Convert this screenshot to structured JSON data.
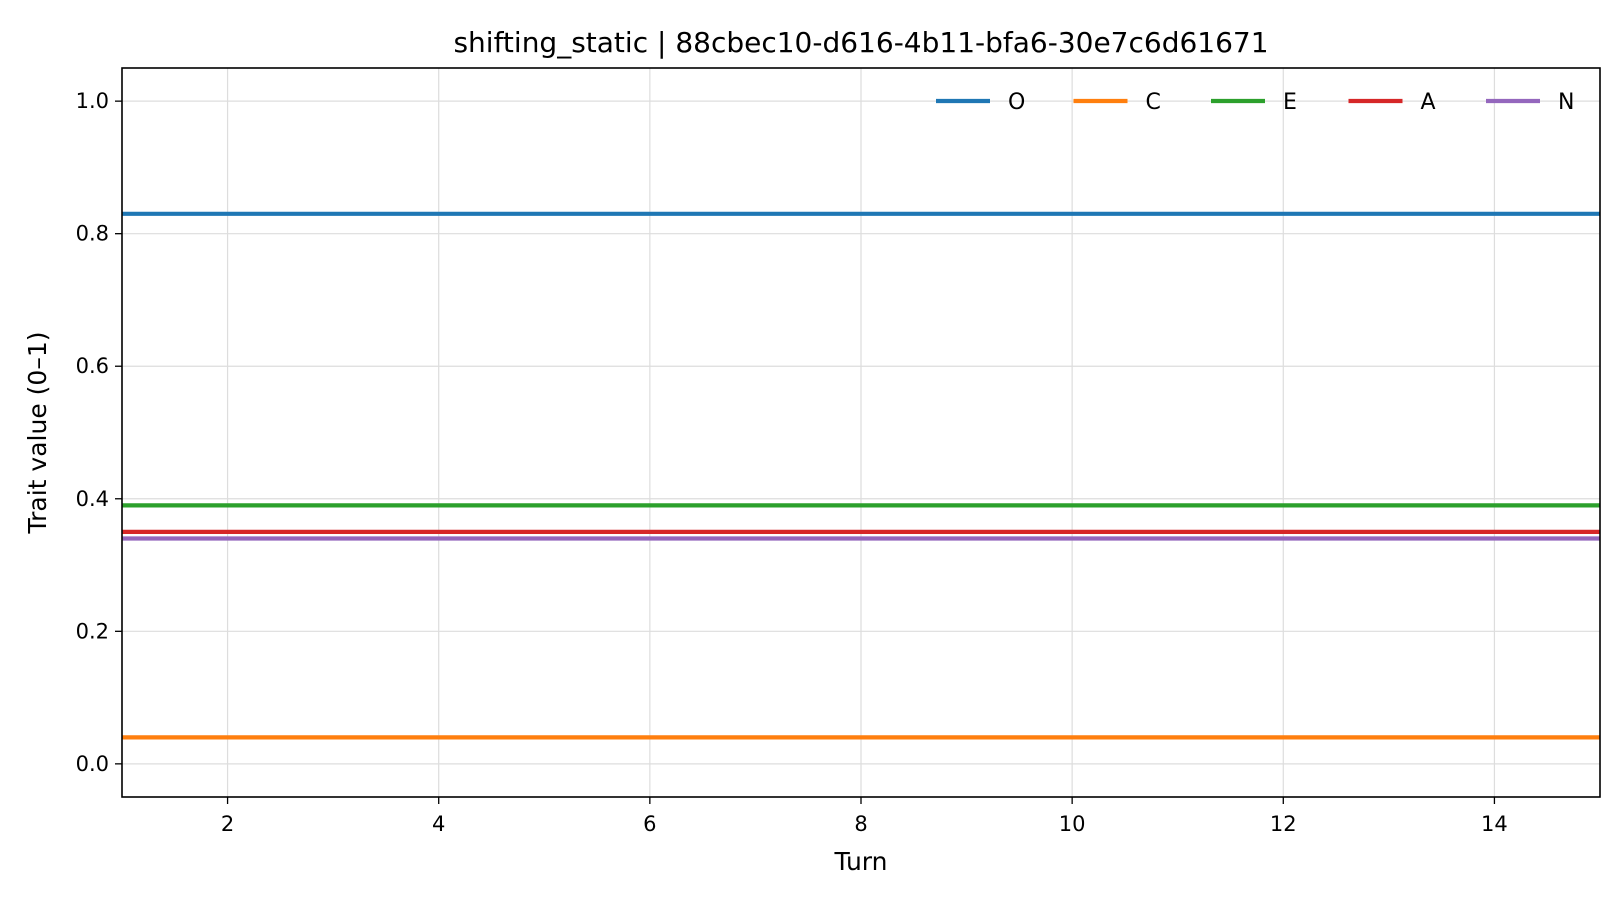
{
  "chart_data": {
    "type": "line",
    "title": "shifting_static | 88cbec10-d616-4b11-bfa6-30e7c6d61671",
    "xlabel": "Turn",
    "ylabel": "Trait value (0–1)",
    "xlim": [
      1,
      15
    ],
    "ylim": [
      -0.05,
      1.05
    ],
    "xticks": [
      2,
      4,
      6,
      8,
      10,
      12,
      14
    ],
    "yticks": [
      0.0,
      0.2,
      0.4,
      0.6,
      0.8,
      1.0
    ],
    "ytick_labels": [
      "0.0",
      "0.2",
      "0.4",
      "0.6",
      "0.8",
      "1.0"
    ],
    "grid": true,
    "legend_position": "top-right",
    "x": [
      1,
      2,
      3,
      4,
      5,
      6,
      7,
      8,
      9,
      10,
      11,
      12,
      13,
      14,
      15
    ],
    "series": [
      {
        "name": "O",
        "color": "#1f77b4",
        "values": [
          0.83,
          0.83,
          0.83,
          0.83,
          0.83,
          0.83,
          0.83,
          0.83,
          0.83,
          0.83,
          0.83,
          0.83,
          0.83,
          0.83,
          0.83
        ]
      },
      {
        "name": "C",
        "color": "#ff7f0e",
        "values": [
          0.04,
          0.04,
          0.04,
          0.04,
          0.04,
          0.04,
          0.04,
          0.04,
          0.04,
          0.04,
          0.04,
          0.04,
          0.04,
          0.04,
          0.04
        ]
      },
      {
        "name": "E",
        "color": "#2ca02c",
        "values": [
          0.39,
          0.39,
          0.39,
          0.39,
          0.39,
          0.39,
          0.39,
          0.39,
          0.39,
          0.39,
          0.39,
          0.39,
          0.39,
          0.39,
          0.39
        ]
      },
      {
        "name": "A",
        "color": "#d62728",
        "values": [
          0.35,
          0.35,
          0.35,
          0.35,
          0.35,
          0.35,
          0.35,
          0.35,
          0.35,
          0.35,
          0.35,
          0.35,
          0.35,
          0.35,
          0.35
        ]
      },
      {
        "name": "N",
        "color": "#9467bd",
        "values": [
          0.34,
          0.34,
          0.34,
          0.34,
          0.34,
          0.34,
          0.34,
          0.34,
          0.34,
          0.34,
          0.34,
          0.34,
          0.34,
          0.34,
          0.34
        ]
      }
    ]
  }
}
